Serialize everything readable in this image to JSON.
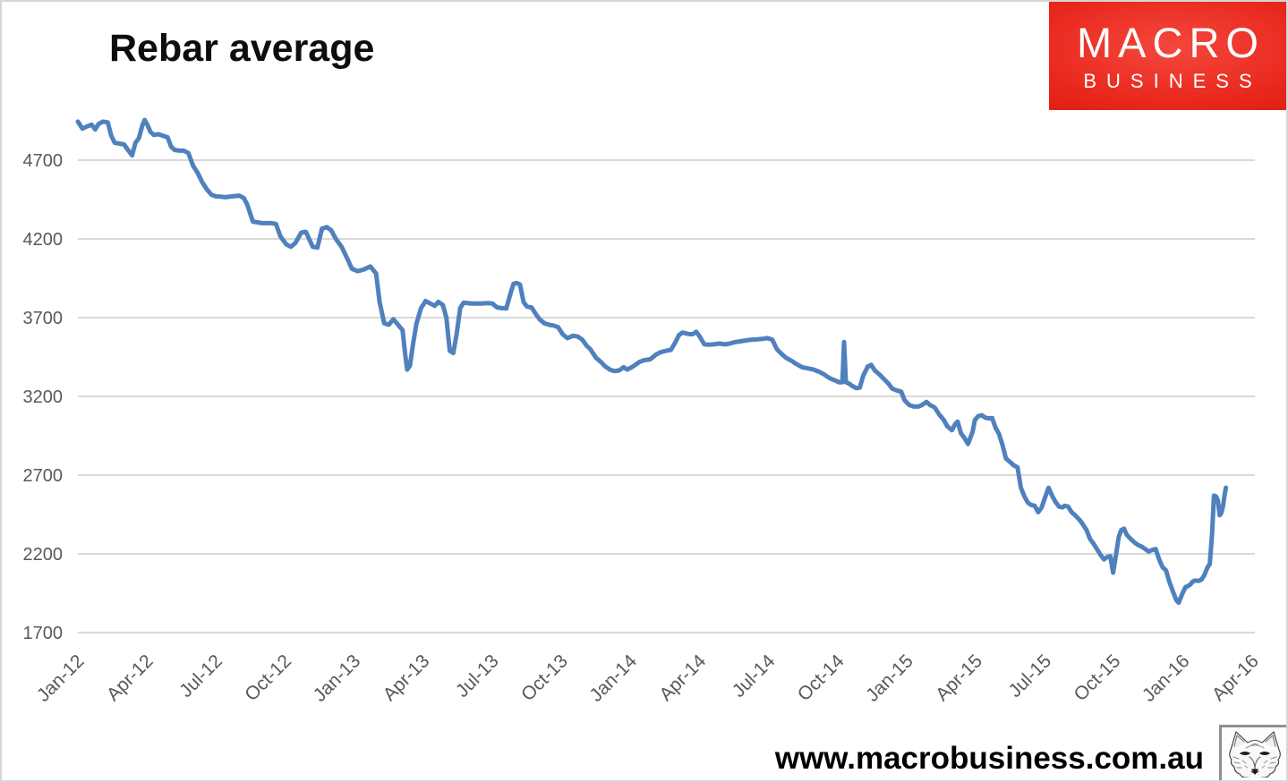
{
  "page": {
    "background": "#ffffff",
    "border_color": "#d6d6d6"
  },
  "header": {
    "title": "Rebar average"
  },
  "logo": {
    "text_top": "MACRO",
    "text_bottom": "BUSINESS",
    "bg_color": "#e02013",
    "text_color": "#ffffff"
  },
  "footer": {
    "website": "www.macrobusiness.com.au",
    "wolf_image": "fox-sketch"
  },
  "chart_data": {
    "type": "line",
    "title": "Rebar average",
    "grid": true,
    "legend": "none",
    "gridline_color": "#d9d9d9",
    "axis_label_color": "#595959",
    "y_ticks": [
      4700,
      4200,
      3700,
      3200,
      2700,
      2200,
      1700
    ],
    "ylim": [
      1700,
      5200
    ],
    "x_tick_labels": [
      "Jan-12",
      "Apr-12",
      "Jul-12",
      "Oct-12",
      "Jan-13",
      "Apr-13",
      "Jul-13",
      "Oct-13",
      "Jan-14",
      "Apr-14",
      "Jul-14",
      "Oct-14",
      "Jan-15",
      "Apr-15",
      "Jul-15",
      "Oct-15",
      "Jan-16",
      "Apr-16"
    ],
    "x_unit": "months since Jan-2012",
    "xlim_months": [
      0,
      51
    ],
    "series": [
      {
        "name": "Rebar average",
        "color": "#4f81bd",
        "points": [
          [
            0,
            4945
          ],
          [
            0.2,
            4900
          ],
          [
            0.4,
            4915
          ],
          [
            0.6,
            4925
          ],
          [
            0.75,
            4895
          ],
          [
            0.9,
            4930
          ],
          [
            1.1,
            4945
          ],
          [
            1.3,
            4940
          ],
          [
            1.45,
            4855
          ],
          [
            1.6,
            4810
          ],
          [
            1.8,
            4805
          ],
          [
            2.0,
            4800
          ],
          [
            2.2,
            4760
          ],
          [
            2.35,
            4730
          ],
          [
            2.5,
            4810
          ],
          [
            2.65,
            4840
          ],
          [
            2.8,
            4920
          ],
          [
            2.9,
            4955
          ],
          [
            3.0,
            4930
          ],
          [
            3.15,
            4880
          ],
          [
            3.3,
            4860
          ],
          [
            3.5,
            4865
          ],
          [
            3.7,
            4855
          ],
          [
            3.9,
            4845
          ],
          [
            4.05,
            4785
          ],
          [
            4.2,
            4765
          ],
          [
            4.4,
            4760
          ],
          [
            4.6,
            4760
          ],
          [
            4.8,
            4745
          ],
          [
            5.0,
            4665
          ],
          [
            5.2,
            4620
          ],
          [
            5.4,
            4560
          ],
          [
            5.6,
            4515
          ],
          [
            5.8,
            4480
          ],
          [
            6.0,
            4470
          ],
          [
            6.2,
            4468
          ],
          [
            6.4,
            4465
          ],
          [
            6.7,
            4470
          ],
          [
            7.0,
            4475
          ],
          [
            7.2,
            4460
          ],
          [
            7.35,
            4420
          ],
          [
            7.6,
            4310
          ],
          [
            8.0,
            4300
          ],
          [
            8.4,
            4300
          ],
          [
            8.6,
            4295
          ],
          [
            8.8,
            4215
          ],
          [
            9.05,
            4165
          ],
          [
            9.25,
            4150
          ],
          [
            9.45,
            4175
          ],
          [
            9.7,
            4240
          ],
          [
            9.9,
            4245
          ],
          [
            10.2,
            4150
          ],
          [
            10.4,
            4145
          ],
          [
            10.6,
            4265
          ],
          [
            10.8,
            4275
          ],
          [
            11.0,
            4255
          ],
          [
            11.2,
            4200
          ],
          [
            11.45,
            4150
          ],
          [
            11.7,
            4075
          ],
          [
            11.9,
            4010
          ],
          [
            12.15,
            3995
          ],
          [
            12.4,
            4005
          ],
          [
            12.7,
            4025
          ],
          [
            12.95,
            3980
          ],
          [
            13.1,
            3800
          ],
          [
            13.3,
            3665
          ],
          [
            13.5,
            3655
          ],
          [
            13.7,
            3690
          ],
          [
            13.9,
            3655
          ],
          [
            14.1,
            3620
          ],
          [
            14.2,
            3480
          ],
          [
            14.3,
            3370
          ],
          [
            14.42,
            3395
          ],
          [
            14.55,
            3530
          ],
          [
            14.7,
            3660
          ],
          [
            14.9,
            3760
          ],
          [
            15.1,
            3805
          ],
          [
            15.3,
            3790
          ],
          [
            15.5,
            3775
          ],
          [
            15.65,
            3800
          ],
          [
            15.85,
            3780
          ],
          [
            16.0,
            3700
          ],
          [
            16.15,
            3490
          ],
          [
            16.3,
            3475
          ],
          [
            16.45,
            3600
          ],
          [
            16.6,
            3760
          ],
          [
            16.75,
            3795
          ],
          [
            17.1,
            3790
          ],
          [
            17.5,
            3790
          ],
          [
            17.8,
            3792
          ],
          [
            18.0,
            3790
          ],
          [
            18.2,
            3765
          ],
          [
            18.4,
            3760
          ],
          [
            18.6,
            3758
          ],
          [
            18.8,
            3860
          ],
          [
            18.92,
            3915
          ],
          [
            19.05,
            3920
          ],
          [
            19.2,
            3910
          ],
          [
            19.35,
            3800
          ],
          [
            19.5,
            3770
          ],
          [
            19.7,
            3765
          ],
          [
            19.9,
            3720
          ],
          [
            20.05,
            3690
          ],
          [
            20.25,
            3665
          ],
          [
            20.45,
            3655
          ],
          [
            20.65,
            3650
          ],
          [
            20.85,
            3640
          ],
          [
            21.05,
            3595
          ],
          [
            21.25,
            3570
          ],
          [
            21.5,
            3585
          ],
          [
            21.7,
            3580
          ],
          [
            21.9,
            3560
          ],
          [
            22.1,
            3520
          ],
          [
            22.25,
            3500
          ],
          [
            22.5,
            3445
          ],
          [
            22.7,
            3420
          ],
          [
            22.9,
            3390
          ],
          [
            23.1,
            3370
          ],
          [
            23.3,
            3360
          ],
          [
            23.5,
            3365
          ],
          [
            23.7,
            3385
          ],
          [
            23.85,
            3370
          ],
          [
            24.05,
            3385
          ],
          [
            24.25,
            3405
          ],
          [
            24.4,
            3420
          ],
          [
            24.6,
            3430
          ],
          [
            24.85,
            3435
          ],
          [
            25.1,
            3465
          ],
          [
            25.3,
            3480
          ],
          [
            25.55,
            3490
          ],
          [
            25.75,
            3495
          ],
          [
            25.95,
            3545
          ],
          [
            26.1,
            3590
          ],
          [
            26.25,
            3605
          ],
          [
            26.4,
            3600
          ],
          [
            26.55,
            3595
          ],
          [
            26.7,
            3595
          ],
          [
            26.85,
            3610
          ],
          [
            27.0,
            3580
          ],
          [
            27.2,
            3530
          ],
          [
            27.4,
            3528
          ],
          [
            27.6,
            3530
          ],
          [
            27.85,
            3535
          ],
          [
            28.1,
            3530
          ],
          [
            28.3,
            3535
          ],
          [
            28.55,
            3545
          ],
          [
            28.8,
            3550
          ],
          [
            29.0,
            3555
          ],
          [
            29.25,
            3560
          ],
          [
            29.5,
            3562
          ],
          [
            29.7,
            3565
          ],
          [
            29.95,
            3570
          ],
          [
            30.15,
            3560
          ],
          [
            30.35,
            3500
          ],
          [
            30.55,
            3470
          ],
          [
            30.75,
            3445
          ],
          [
            31.0,
            3425
          ],
          [
            31.2,
            3405
          ],
          [
            31.45,
            3385
          ],
          [
            31.7,
            3378
          ],
          [
            31.95,
            3370
          ],
          [
            32.2,
            3355
          ],
          [
            32.4,
            3340
          ],
          [
            32.65,
            3315
          ],
          [
            32.9,
            3300
          ],
          [
            33.05,
            3290
          ],
          [
            33.2,
            3290
          ],
          [
            33.27,
            3545
          ],
          [
            33.35,
            3290
          ],
          [
            33.5,
            3280
          ],
          [
            33.6,
            3268
          ],
          [
            33.8,
            3252
          ],
          [
            33.95,
            3255
          ],
          [
            34.1,
            3330
          ],
          [
            34.3,
            3390
          ],
          [
            34.45,
            3400
          ],
          [
            34.6,
            3365
          ],
          [
            34.8,
            3340
          ],
          [
            35.0,
            3310
          ],
          [
            35.2,
            3280
          ],
          [
            35.35,
            3250
          ],
          [
            35.55,
            3238
          ],
          [
            35.75,
            3230
          ],
          [
            35.9,
            3175
          ],
          [
            36.1,
            3145
          ],
          [
            36.3,
            3135
          ],
          [
            36.5,
            3135
          ],
          [
            36.65,
            3145
          ],
          [
            36.85,
            3165
          ],
          [
            37.0,
            3145
          ],
          [
            37.2,
            3130
          ],
          [
            37.4,
            3085
          ],
          [
            37.6,
            3050
          ],
          [
            37.75,
            3010
          ],
          [
            37.95,
            2985
          ],
          [
            38.1,
            3025
          ],
          [
            38.2,
            3040
          ],
          [
            38.35,
            2965
          ],
          [
            38.5,
            2935
          ],
          [
            38.65,
            2898
          ],
          [
            38.85,
            2975
          ],
          [
            38.95,
            3050
          ],
          [
            39.1,
            3075
          ],
          [
            39.25,
            3080
          ],
          [
            39.4,
            3065
          ],
          [
            39.55,
            3060
          ],
          [
            39.7,
            3062
          ],
          [
            39.85,
            3000
          ],
          [
            40.0,
            2960
          ],
          [
            40.15,
            2890
          ],
          [
            40.3,
            2805
          ],
          [
            40.5,
            2780
          ],
          [
            40.65,
            2760
          ],
          [
            40.8,
            2750
          ],
          [
            40.95,
            2620
          ],
          [
            41.1,
            2565
          ],
          [
            41.25,
            2525
          ],
          [
            41.4,
            2510
          ],
          [
            41.55,
            2505
          ],
          [
            41.7,
            2465
          ],
          [
            41.85,
            2495
          ],
          [
            42.0,
            2560
          ],
          [
            42.15,
            2620
          ],
          [
            42.3,
            2570
          ],
          [
            42.45,
            2530
          ],
          [
            42.6,
            2500
          ],
          [
            42.75,
            2495
          ],
          [
            42.85,
            2505
          ],
          [
            43.0,
            2500
          ],
          [
            43.15,
            2465
          ],
          [
            43.3,
            2445
          ],
          [
            43.5,
            2415
          ],
          [
            43.65,
            2385
          ],
          [
            43.8,
            2350
          ],
          [
            43.95,
            2295
          ],
          [
            44.1,
            2265
          ],
          [
            44.25,
            2230
          ],
          [
            44.4,
            2195
          ],
          [
            44.55,
            2165
          ],
          [
            44.7,
            2180
          ],
          [
            44.83,
            2185
          ],
          [
            44.95,
            2080
          ],
          [
            45.1,
            2215
          ],
          [
            45.2,
            2310
          ],
          [
            45.3,
            2350
          ],
          [
            45.42,
            2360
          ],
          [
            45.55,
            2320
          ],
          [
            45.75,
            2290
          ],
          [
            45.9,
            2270
          ],
          [
            46.05,
            2255
          ],
          [
            46.2,
            2245
          ],
          [
            46.35,
            2230
          ],
          [
            46.5,
            2215
          ],
          [
            46.65,
            2225
          ],
          [
            46.8,
            2230
          ],
          [
            46.95,
            2165
          ],
          [
            47.1,
            2115
          ],
          [
            47.25,
            2095
          ],
          [
            47.4,
            2020
          ],
          [
            47.55,
            1960
          ],
          [
            47.7,
            1905
          ],
          [
            47.8,
            1890
          ],
          [
            47.95,
            1945
          ],
          [
            48.1,
            1990
          ],
          [
            48.2,
            1995
          ],
          [
            48.3,
            2005
          ],
          [
            48.42,
            2025
          ],
          [
            48.52,
            2030
          ],
          [
            48.65,
            2028
          ],
          [
            48.78,
            2035
          ],
          [
            48.9,
            2060
          ],
          [
            49.05,
            2115
          ],
          [
            49.15,
            2135
          ],
          [
            49.25,
            2330
          ],
          [
            49.33,
            2570
          ],
          [
            49.42,
            2565
          ],
          [
            49.5,
            2540
          ],
          [
            49.58,
            2445
          ],
          [
            49.65,
            2460
          ],
          [
            49.72,
            2500
          ],
          [
            49.78,
            2560
          ],
          [
            49.85,
            2620
          ]
        ]
      }
    ]
  }
}
